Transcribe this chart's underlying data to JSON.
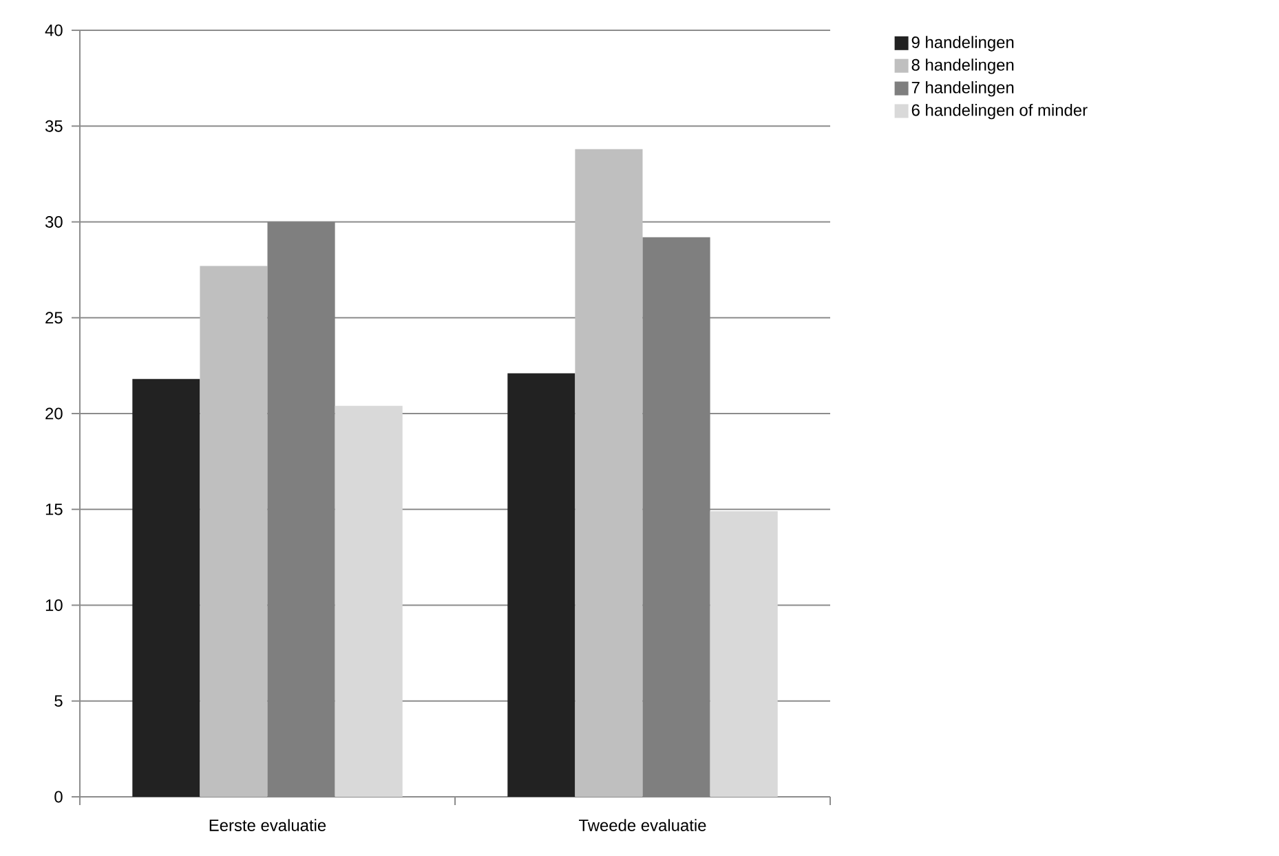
{
  "chart_data": {
    "type": "bar",
    "categories": [
      "Eerste evaluatie",
      "Tweede evaluatie"
    ],
    "series": [
      {
        "name": "9 handelingen",
        "color": "#222222",
        "values": [
          21.8,
          22.1
        ]
      },
      {
        "name": "8 handelingen",
        "color": "#bfbfbf",
        "values": [
          27.7,
          33.8
        ]
      },
      {
        "name": "7 handelingen",
        "color": "#7f7f7f",
        "values": [
          30.0,
          29.2
        ]
      },
      {
        "name": "6 handelingen of minder",
        "color": "#d9d9d9",
        "values": [
          20.4,
          14.9
        ]
      }
    ],
    "ylim": [
      0,
      40
    ],
    "yticks": [
      0,
      5,
      10,
      15,
      20,
      25,
      30,
      35,
      40
    ],
    "grid": "y",
    "legend": "right"
  }
}
